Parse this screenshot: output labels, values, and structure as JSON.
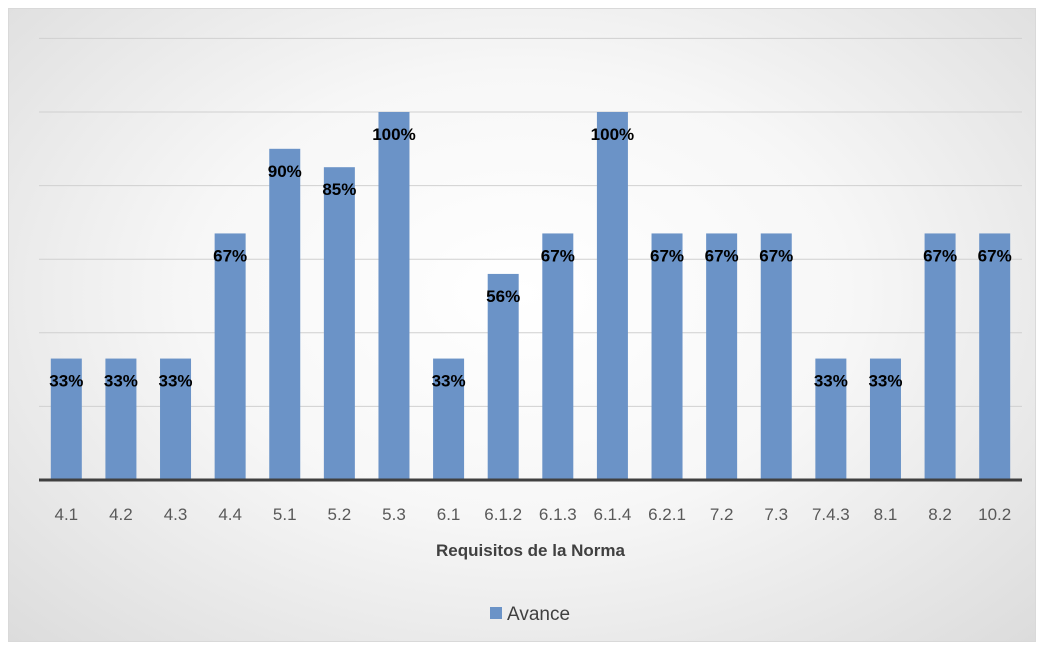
{
  "chart_data": {
    "type": "bar",
    "xlabel": "Requisitos de la Norma",
    "ylabel": "",
    "ylim": [
      0,
      1.25
    ],
    "grid": true,
    "legend_position": "bottom",
    "series": [
      {
        "name": "Avance",
        "color": "#6b93c7",
        "values": [
          0.33,
          0.33,
          0.33,
          0.67,
          0.9,
          0.85,
          1.0,
          0.33,
          0.56,
          0.67,
          1.0,
          0.67,
          0.67,
          0.67,
          0.33,
          0.33,
          0.67,
          0.67
        ],
        "labels": [
          "33%",
          "33%",
          "33%",
          "67%",
          "90%",
          "85%",
          "100%",
          "33%",
          "56%",
          "67%",
          "100%",
          "67%",
          "67%",
          "67%",
          "33%",
          "33%",
          "67%",
          "67%"
        ]
      }
    ],
    "categories": [
      "4.1",
      "4.2",
      "4.3",
      "4.4",
      "5.1",
      "5.2",
      "5.3",
      "6.1",
      "6.1.2",
      "6.1.3",
      "6.1.4",
      "6.2.1",
      "7.2",
      "7.3",
      "7.4.3",
      "8.1",
      "8.2",
      "10.2"
    ]
  }
}
